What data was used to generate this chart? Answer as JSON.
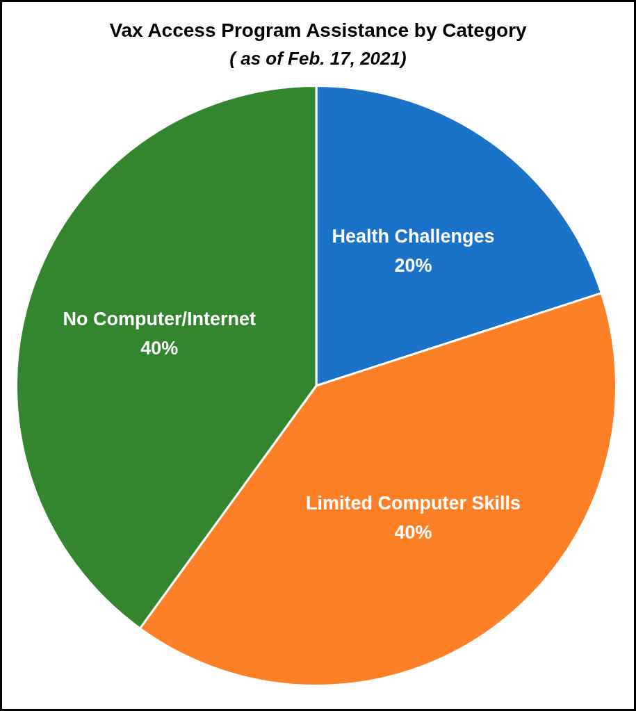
{
  "chart_data": {
    "type": "pie",
    "title": "Vax Access Program Assistance by Category",
    "subtitle": "( as of Feb. 17, 2021)",
    "categories": [
      "Health Challenges",
      "Limited Computer Skills",
      "No Computer/Internet"
    ],
    "values": [
      20,
      40,
      40
    ],
    "colors": [
      "#1a73c8",
      "#fd7f26",
      "#33862e"
    ],
    "value_labels": [
      "20%",
      "40%",
      "40%"
    ]
  }
}
